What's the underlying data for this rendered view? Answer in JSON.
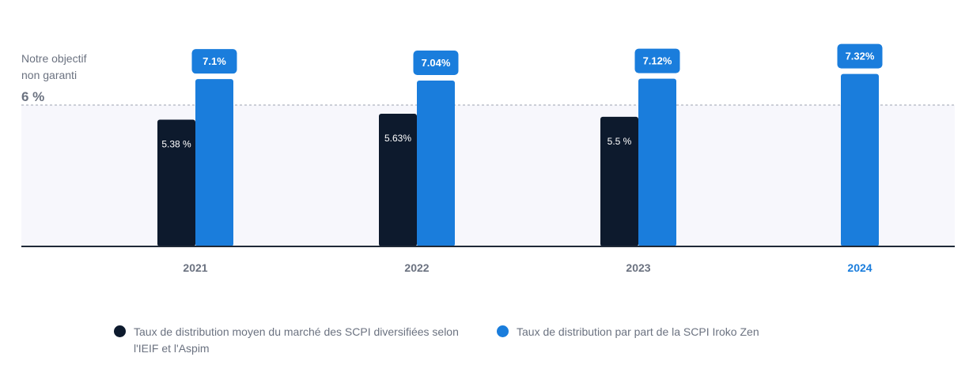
{
  "objective": {
    "line1": "Notre objectif",
    "line2": "non garanti",
    "value_label": "6 %",
    "value": 6
  },
  "colors": {
    "market": "#0d1a2d",
    "iroko": "#1a7ddc",
    "target_band": "#f7f7fc",
    "axis": "#1f2937",
    "category_text": "#6b7280",
    "highlight_category": "#1a7ddc"
  },
  "chart_data": {
    "type": "bar",
    "categories": [
      "2021",
      "2022",
      "2023",
      "2024"
    ],
    "highlight_category": "2024",
    "target": 6,
    "series": [
      {
        "name": "Taux de distribution moyen du marché des SCPI diversifiées selon l'IEIF et l'Aspim",
        "values": [
          5.38,
          5.63,
          5.5,
          null
        ],
        "labels": [
          "5.38 %",
          "5.63%",
          "5.5 %",
          null
        ]
      },
      {
        "name": "Taux de distribution par part de la SCPI Iroko Zen",
        "values": [
          7.1,
          7.04,
          7.12,
          7.32
        ],
        "labels": [
          "7.1%",
          "7.04%",
          "7.12%",
          "7.32%"
        ]
      }
    ],
    "ylim": [
      0,
      10
    ]
  },
  "legend": {
    "items": [
      {
        "label": "Taux de distribution moyen du marché des SCPI diversifiées selon l'IEIF et l'Aspim"
      },
      {
        "label": "Taux de distribution par part de la SCPI Iroko Zen"
      }
    ]
  }
}
